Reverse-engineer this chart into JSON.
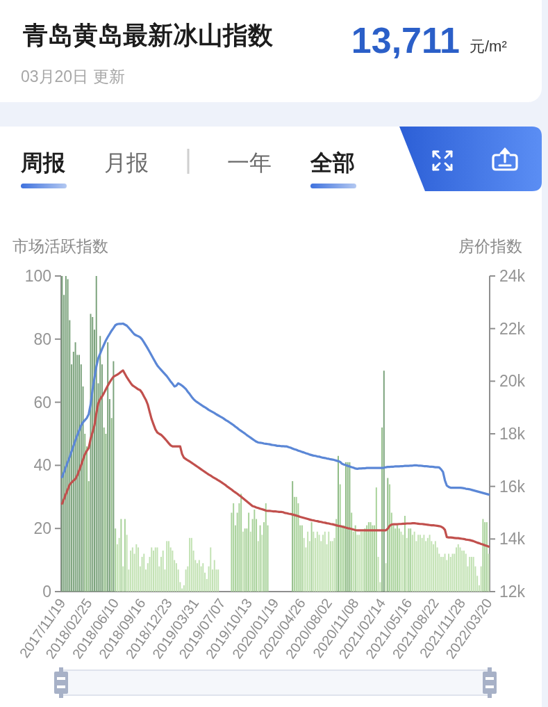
{
  "chart_data": {
    "type": "bar",
    "title": "青岛黄岛最新冰山指数",
    "subtitle": "03月20日 更新",
    "annotations": [
      "13,711",
      "元/m²",
      "周报",
      "月报",
      "一年",
      "全部"
    ],
    "ylabel": "市场活跃指数",
    "y2label": "房价指数",
    "ylim": [
      0,
      100
    ],
    "yticks": [
      0,
      20,
      40,
      60,
      80,
      100
    ],
    "y2lim": [
      12000,
      24000
    ],
    "y2ticks": [
      {
        "value": 12000,
        "label": "12k"
      },
      {
        "value": 14000,
        "label": "14k"
      },
      {
        "value": 16000,
        "label": "16k"
      },
      {
        "value": 18000,
        "label": "18k"
      },
      {
        "value": 20000,
        "label": "20k"
      },
      {
        "value": 22000,
        "label": "22k"
      },
      {
        "value": 24000,
        "label": "24k"
      }
    ],
    "categories": [
      "2017/11/19",
      null,
      null,
      null,
      null,
      null,
      null,
      null,
      null,
      null,
      null,
      null,
      null,
      null,
      "2018/02/25",
      null,
      null,
      null,
      null,
      null,
      null,
      null,
      null,
      null,
      null,
      null,
      null,
      null,
      "2018/06/10",
      null,
      null,
      null,
      null,
      null,
      null,
      null,
      null,
      null,
      null,
      null,
      null,
      null,
      "2018/09/16",
      null,
      null,
      null,
      null,
      null,
      null,
      null,
      null,
      null,
      null,
      null,
      null,
      null,
      "2018/12/23",
      null,
      null,
      null,
      null,
      null,
      null,
      null,
      null,
      null,
      null,
      null,
      null,
      null,
      "2019/03/31",
      null,
      null,
      null,
      null,
      null,
      null,
      null,
      null,
      null,
      null,
      null,
      null,
      null,
      "2019/07/07",
      null,
      null,
      null,
      null,
      null,
      null,
      null,
      null,
      null,
      null,
      null,
      null,
      null,
      "2019/10/13",
      null,
      null,
      null,
      null,
      null,
      null,
      null,
      null,
      null,
      null,
      null,
      null,
      null,
      "2020/01/19",
      null,
      null,
      null,
      null,
      null,
      null,
      null,
      null,
      null,
      null,
      null,
      null,
      null,
      "2020/04/26",
      null,
      null,
      null,
      null,
      null,
      null,
      null,
      null,
      null,
      null,
      null,
      null,
      null,
      "2020/08/02",
      null,
      null,
      null,
      null,
      null,
      null,
      null,
      null,
      null,
      null,
      null,
      null,
      null,
      "2020/11/08",
      null,
      null,
      null,
      null,
      null,
      null,
      null,
      null,
      null,
      null,
      null,
      null,
      null,
      "2021/02/14",
      null,
      null,
      null,
      null,
      null,
      null,
      null,
      null,
      null,
      null,
      null,
      null,
      null,
      "2021/05/16",
      null,
      null,
      null,
      null,
      null,
      null,
      null,
      null,
      null,
      null,
      null,
      null,
      null,
      "2021/08/22",
      null,
      null,
      null,
      null,
      null,
      null,
      null,
      null,
      null,
      null,
      null,
      null,
      null,
      "2021/11/28",
      null,
      null,
      null,
      null,
      null,
      null,
      null,
      null,
      null,
      null,
      null,
      null,
      null,
      "2022/03/20"
    ],
    "series": [
      {
        "values": [
          100,
          94,
          100,
          99,
          86,
          72,
          76,
          79,
          75,
          75,
          72,
          65,
          50,
          46,
          35,
          88,
          87,
          83,
          100,
          66,
          81,
          72,
          52,
          50,
          79,
          61,
          55,
          73,
          20,
          15,
          17,
          23,
          8,
          23,
          18,
          7,
          13,
          14,
          12,
          15,
          14,
          8,
          11,
          12,
          7,
          9,
          11,
          14,
          13,
          14,
          14,
          8,
          11,
          13,
          7,
          16,
          16,
          14,
          13,
          10,
          9,
          7,
          3,
          1,
          2,
          7,
          8,
          17,
          17,
          13,
          10,
          9,
          10,
          8,
          9,
          6,
          4,
          8,
          14,
          7,
          10,
          7,
          7,
          null,
          null,
          null,
          null,
          null,
          null,
          25,
          28,
          21,
          25,
          28,
          31,
          19,
          20,
          20,
          25,
          19,
          23,
          26,
          23,
          16,
          21,
          18,
          22,
          28,
          21,
          null,
          null,
          null,
          null,
          null,
          null,
          null,
          null,
          null,
          null,
          null,
          null,
          35,
          30,
          30,
          28,
          21,
          21,
          17,
          14,
          19,
          16,
          22,
          19,
          17,
          19,
          18,
          16,
          18,
          19,
          15,
          19,
          16,
          16,
          17,
          23,
          43,
          34,
          21,
          21,
          41,
          41,
          41,
          25,
          19,
          21,
          18,
          18,
          19,
          19,
          20,
          21,
          22,
          22,
          21,
          21,
          33,
          11,
          3,
          52,
          70,
          9,
          36,
          34,
          25,
          21,
          20,
          21,
          20,
          19,
          18,
          24,
          17,
          20,
          20,
          18,
          19,
          16,
          18,
          18,
          17,
          18,
          16,
          17,
          18,
          16,
          15,
          16,
          14,
          12,
          11,
          11,
          12,
          10,
          12,
          11,
          12,
          12,
          14,
          15,
          14,
          13,
          13,
          12,
          8,
          11,
          11,
          11,
          8,
          5,
          2,
          8,
          23,
          22,
          22,
          12
        ],
        "colors": [
          "#7aa27b",
          "#7aa27b",
          "#7aa27b",
          "#7aa27b",
          "#7aa27b",
          "#7aa27b",
          "#7aa27b",
          "#7aa27b",
          "#7aa27b",
          "#7aa27b",
          "#7aa27b",
          "#7aa27b",
          "#8fbb86",
          "#8fbb86",
          "#8fbb86",
          "#7aa27b",
          "#7aa27b",
          "#7aa27b",
          "#7aa27b",
          "#7aa27b",
          "#7aa27b",
          "#7aa27b",
          "#8fbb86",
          "#8fbb86",
          "#7aa27b",
          "#7aa27b",
          "#8fbb86",
          "#7aa27b",
          "#a8d29a",
          "#c2e2b3",
          "#c2e2b3",
          "#a8d29a",
          "#c2e2b3",
          "#a8d29a",
          "#c2e2b3",
          "#c2e2b3",
          "#c2e2b3",
          "#c2e2b3",
          "#c2e2b3",
          "#c2e2b3",
          "#c2e2b3",
          "#c2e2b3",
          "#c2e2b3",
          "#c2e2b3",
          "#c2e2b3",
          "#c2e2b3",
          "#c2e2b3",
          "#c2e2b3",
          "#c2e2b3",
          "#c2e2b3",
          "#c2e2b3",
          "#c2e2b3",
          "#c2e2b3",
          "#c2e2b3",
          "#c2e2b3",
          "#c2e2b3",
          "#c2e2b3",
          "#c2e2b3",
          "#c2e2b3",
          "#c2e2b3",
          "#c2e2b3",
          "#c2e2b3",
          "#c2e2b3",
          "#c2e2b3",
          "#c2e2b3",
          "#c2e2b3",
          "#c2e2b3",
          "#c2e2b3",
          "#c2e2b3",
          "#c2e2b3",
          "#c2e2b3",
          "#c2e2b3",
          "#c2e2b3",
          "#c2e2b3",
          "#c2e2b3",
          "#c2e2b3",
          "#c2e2b3",
          "#c2e2b3",
          "#c2e2b3",
          "#c2e2b3",
          "#c2e2b3",
          "#c2e2b3",
          "#c2e2b3",
          null,
          null,
          null,
          null,
          null,
          null,
          "#a8d29a",
          "#a8d29a",
          "#a8d29a",
          "#a8d29a",
          "#a8d29a",
          "#a8d29a",
          "#c2e2b3",
          "#a8d29a",
          "#a8d29a",
          "#a8d29a",
          "#c2e2b3",
          "#a8d29a",
          "#a8d29a",
          "#a8d29a",
          "#c2e2b3",
          "#a8d29a",
          "#c2e2b3",
          "#a8d29a",
          "#a8d29a",
          "#a8d29a",
          null,
          null,
          null,
          null,
          null,
          null,
          null,
          null,
          null,
          null,
          null,
          null,
          "#8fbb86",
          "#a8d29a",
          "#a8d29a",
          "#a8d29a",
          "#a8d29a",
          "#a8d29a",
          "#c2e2b3",
          "#c2e2b3",
          "#c2e2b3",
          "#c2e2b3",
          "#a8d29a",
          "#c2e2b3",
          "#c2e2b3",
          "#c2e2b3",
          "#c2e2b3",
          "#c2e2b3",
          "#c2e2b3",
          "#c2e2b3",
          "#c2e2b3",
          "#c2e2b3",
          "#c2e2b3",
          "#c2e2b3",
          "#c2e2b3",
          "#a8d29a",
          "#8fbb86",
          "#a8d29a",
          "#a8d29a",
          "#a8d29a",
          "#8fbb86",
          "#8fbb86",
          "#8fbb86",
          "#a8d29a",
          "#c2e2b3",
          "#a8d29a",
          "#c2e2b3",
          "#c2e2b3",
          "#c2e2b3",
          "#c2e2b3",
          "#a8d29a",
          "#a8d29a",
          "#a8d29a",
          "#a8d29a",
          "#a8d29a",
          "#a8d29a",
          "#a8d29a",
          "#c2e2b3",
          "#c2e2b3",
          "#8fbb86",
          "#7aa27b",
          "#c2e2b3",
          "#8fbb86",
          "#a8d29a",
          "#a8d29a",
          "#a8d29a",
          "#a8d29a",
          "#a8d29a",
          "#a8d29a",
          "#c2e2b3",
          "#c2e2b3",
          "#a8d29a",
          "#c2e2b3",
          "#a8d29a",
          "#a8d29a",
          "#c2e2b3",
          "#c2e2b3",
          "#c2e2b3",
          "#c2e2b3",
          "#c2e2b3",
          "#c2e2b3",
          "#c2e2b3",
          "#c2e2b3",
          "#c2e2b3",
          "#c2e2b3",
          "#c2e2b3",
          "#c2e2b3",
          "#c2e2b3",
          "#c2e2b3",
          "#c2e2b3",
          "#c2e2b3",
          "#c2e2b3",
          "#c2e2b3",
          "#c2e2b3",
          "#c2e2b3",
          "#c2e2b3",
          "#c2e2b3",
          "#c2e2b3",
          "#c2e2b3",
          "#c2e2b3",
          "#c2e2b3",
          "#c2e2b3",
          "#c2e2b3",
          "#c2e2b3",
          "#c2e2b3",
          "#c2e2b3",
          "#c2e2b3",
          "#c2e2b3",
          "#c2e2b3",
          "#c2e2b3",
          "#c2e2b3",
          "#c2e2b3",
          "#a8d29a",
          "#a8d29a",
          "#a8d29a",
          "#c2e2b3"
        ]
      },
      {
        "type": "line",
        "axis": "y2",
        "color": "#5b87d6",
        "values": [
          16350,
          16540,
          16740,
          16930,
          17120,
          17330,
          17540,
          17750,
          17950,
          18130,
          18320,
          18440,
          18520,
          18600,
          18750,
          19120,
          19680,
          20120,
          20560,
          20870,
          21050,
          21230,
          21390,
          21550,
          21680,
          21800,
          21920,
          22020,
          22130,
          22170,
          22180,
          22180,
          22190,
          22150,
          22110,
          22030,
          21950,
          21860,
          21780,
          21740,
          21710,
          21670,
          21590,
          21480,
          21360,
          21240,
          21110,
          20980,
          20850,
          20720,
          20600,
          20510,
          20430,
          20350,
          20270,
          20190,
          20090,
          19990,
          19900,
          19800,
          19830,
          19920,
          19880,
          19830,
          19770,
          19700,
          19600,
          19510,
          19410,
          19320,
          19250,
          19200,
          19150,
          19100,
          19050,
          19010,
          18960,
          18910,
          18870,
          18830,
          18790,
          18740,
          18700,
          18660,
          18620,
          18570,
          18520,
          18480,
          18430,
          18380,
          18330,
          18270,
          18220,
          18160,
          18110,
          18060,
          18010,
          17950,
          17900,
          17850,
          17800,
          17750,
          17700,
          17670,
          17660,
          17650,
          17630,
          17620,
          17610,
          17600,
          17580,
          17570,
          17560,
          17540,
          17540,
          17530,
          17530,
          17520,
          17520,
          17490,
          17470,
          17440,
          17410,
          17390,
          17360,
          17340,
          17310,
          17290,
          17260,
          17240,
          17210,
          17190,
          17170,
          17160,
          17140,
          17130,
          17110,
          17090,
          17080,
          17060,
          17050,
          17030,
          17020,
          17000,
          16980,
          16960,
          16930,
          16860,
          16830,
          16810,
          16780,
          16760,
          16730,
          16710,
          16680,
          16670,
          16680,
          16680,
          16690,
          16690,
          16700,
          16700,
          16700,
          16700,
          16700,
          16700,
          16700,
          16700,
          16700,
          16710,
          16730,
          16740,
          16740,
          16750,
          16750,
          16760,
          16760,
          16760,
          16770,
          16770,
          16780,
          16780,
          16780,
          16790,
          16790,
          16800,
          16800,
          16790,
          16790,
          16780,
          16770,
          16770,
          16760,
          16750,
          16750,
          16740,
          16730,
          16730,
          16720,
          16650,
          16550,
          16230,
          16030,
          15980,
          15950,
          15950,
          15950,
          15950,
          15950,
          15950,
          15940,
          15930,
          15910,
          15900,
          15890,
          15870,
          15850,
          15830,
          15810,
          15790,
          15770,
          15750,
          15730,
          15710,
          15690
        ]
      },
      {
        "type": "line",
        "axis": "y2",
        "color": "#c1504d",
        "values": [
          15340,
          15520,
          15710,
          15890,
          16070,
          16150,
          16220,
          16280,
          16420,
          16610,
          16810,
          17020,
          17220,
          17350,
          17460,
          17810,
          18060,
          18320,
          18780,
          19160,
          19320,
          19420,
          19550,
          19690,
          19830,
          19960,
          20070,
          20170,
          20210,
          20250,
          20300,
          20360,
          20410,
          20280,
          20150,
          20040,
          19930,
          19840,
          19790,
          19740,
          19690,
          19660,
          19560,
          19420,
          19290,
          19110,
          18830,
          18560,
          18360,
          18170,
          18050,
          18000,
          17960,
          17890,
          17810,
          17730,
          17640,
          17560,
          17520,
          17520,
          17520,
          17520,
          17520,
          17230,
          17090,
          17040,
          16990,
          16950,
          16900,
          16850,
          16800,
          16750,
          16700,
          16650,
          16600,
          16550,
          16500,
          16450,
          16410,
          16360,
          16320,
          16280,
          16230,
          16190,
          16140,
          16090,
          16040,
          15980,
          15930,
          15880,
          15820,
          15770,
          15720,
          15660,
          15610,
          15550,
          15490,
          15430,
          15370,
          15310,
          15250,
          15230,
          15200,
          15180,
          15150,
          15130,
          15110,
          15080,
          15070,
          15070,
          15060,
          15050,
          15050,
          15040,
          15030,
          15030,
          15020,
          14990,
          14980,
          14960,
          14950,
          14930,
          14910,
          14890,
          14870,
          14840,
          14820,
          14800,
          14780,
          14760,
          14740,
          14720,
          14710,
          14690,
          14680,
          14660,
          14650,
          14630,
          14620,
          14600,
          14590,
          14570,
          14560,
          14540,
          14520,
          14500,
          14490,
          14470,
          14450,
          14430,
          14410,
          14400,
          14380,
          14360,
          14340,
          14330,
          14330,
          14330,
          14330,
          14330,
          14330,
          14330,
          14330,
          14330,
          14330,
          14330,
          14330,
          14330,
          14330,
          14330,
          14330,
          14390,
          14500,
          14550,
          14560,
          14560,
          14560,
          14570,
          14570,
          14580,
          14580,
          14590,
          14590,
          14590,
          14600,
          14600,
          14590,
          14580,
          14570,
          14570,
          14560,
          14550,
          14540,
          14530,
          14520,
          14520,
          14510,
          14500,
          14490,
          14470,
          14430,
          14350,
          14070,
          14060,
          14060,
          14050,
          14040,
          14030,
          14030,
          14020,
          14010,
          14000,
          13980,
          13970,
          13960,
          13940,
          13920,
          13890,
          13860,
          13840,
          13810,
          13790,
          13760,
          13740,
          13711
        ]
      }
    ]
  }
}
